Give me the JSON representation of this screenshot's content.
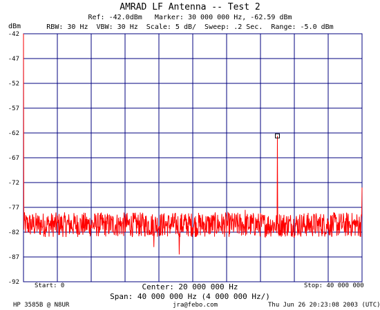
{
  "chart_data": {
    "type": "line",
    "title": "AMRAD LF Antenna -- Test 2",
    "info_line1": "Ref: -42.0dBm   Marker: 30 000 000 Hz, -62.59 dBm",
    "info_line2": "RBW: 30 Hz  VBW: 30 Hz  Scale: 5 dB/  Sweep: .2 Sec.  Range: -5.0 dBm",
    "ylabel": "dBm",
    "ylim": [
      -92,
      -42
    ],
    "y_ticks": [
      "-42",
      "-47",
      "-52",
      "-57",
      "-62",
      "-67",
      "-72",
      "-77",
      "-82",
      "-87",
      "-92"
    ],
    "xlim": [
      0,
      40000000
    ],
    "x_divisions": 10,
    "grid": true,
    "x_start_label": "Start: 0",
    "x_stop_label": "Stop: 40 000 000",
    "center_label": "Center: 20 000 000 Hz",
    "span_label": "Span: 40 000 000 Hz (4 000 000 Hz/)",
    "marker": {
      "x": 30000000,
      "y": -62.59
    },
    "series": [
      {
        "color": "#ff0000",
        "noise_floor": -80.5,
        "noise_spread": 2.5,
        "spikes": [
          {
            "x": 0,
            "y": -42
          },
          {
            "x": 30000000,
            "y": -62.59
          },
          {
            "x": 26200000,
            "y": -77.5
          },
          {
            "x": 19000000,
            "y": -78.5
          },
          {
            "x": 18400000,
            "y": -86.5
          },
          {
            "x": 15400000,
            "y": -85
          },
          {
            "x": 40000000,
            "y": -73
          }
        ]
      }
    ]
  },
  "footer": {
    "instrument": "HP 3585B @ N8UR",
    "email": "jra@febo.com",
    "date": "Thu Jun 26 20:23:08 2003 (UTC)"
  },
  "colors": {
    "grid": "#00007f",
    "trace": "#ff0000",
    "background": "#ffffff"
  }
}
